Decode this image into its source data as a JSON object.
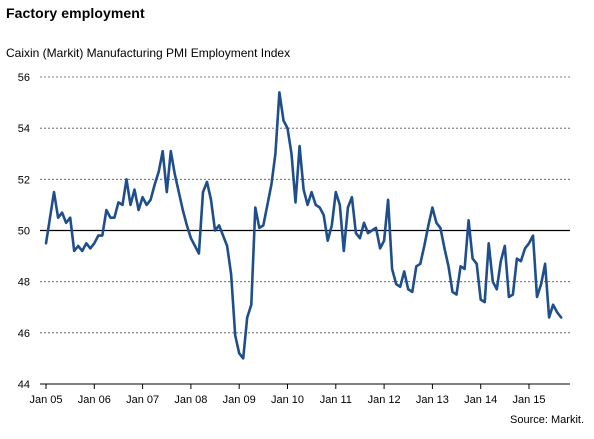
{
  "header": {
    "title": "Factory employment",
    "subtitle": "Caixin (Markit) Manufacturing PMI Employment Index",
    "source": "Source: Markit."
  },
  "chart_data": {
    "type": "line",
    "title": "Factory employment",
    "subtitle": "Caixin (Markit) Manufacturing PMI Employment Index",
    "ylim": [
      44,
      56
    ],
    "yticks": [
      "44",
      "46",
      "48",
      "50",
      "52",
      "54",
      "56"
    ],
    "xticks": [
      "Jan 05",
      "Jan 06",
      "Jan 07",
      "Jan 08",
      "Jan 09",
      "Jan 10",
      "Jan 11",
      "Jan 12",
      "Jan 13",
      "Jan 14",
      "Jan 15"
    ],
    "reference_line": 50,
    "grid": "horizontal dashed",
    "line_color": "#1f4e8c",
    "x_start": "2005-01",
    "x_step": "month",
    "series": [
      {
        "values": [
          49.5,
          50.5,
          51.5,
          50.5,
          50.7,
          50.3,
          50.5,
          49.2,
          49.4,
          49.2,
          49.5,
          49.3,
          49.5,
          49.8,
          49.8,
          50.8,
          50.5,
          50.5,
          51.1,
          51.0,
          52.0,
          51.0,
          51.6,
          50.8,
          51.3,
          51.0,
          51.2,
          51.8,
          52.3,
          53.1,
          51.5,
          53.1,
          52.2,
          51.5,
          50.8,
          50.2,
          49.7,
          49.4,
          49.1,
          51.5,
          51.9,
          51.2,
          50.0,
          50.2,
          49.8,
          49.4,
          48.3,
          45.9,
          45.2,
          45.0,
          46.6,
          47.1,
          50.9,
          50.1,
          50.2,
          51.0,
          51.8,
          53.0,
          55.4,
          54.3,
          54.0,
          53.0,
          51.1,
          53.3,
          51.6,
          51.0,
          51.5,
          51.0,
          50.9,
          50.6,
          49.6,
          50.2,
          51.5,
          51.0,
          49.2,
          50.9,
          51.3,
          49.9,
          49.7,
          50.3,
          49.9,
          50.0,
          50.1,
          49.3,
          49.6,
          51.2,
          48.5,
          47.9,
          47.8,
          48.4,
          47.7,
          47.6,
          48.6,
          48.7,
          49.4,
          50.2,
          50.9,
          50.3,
          50.1,
          49.3,
          48.6,
          47.6,
          47.5,
          48.6,
          48.5,
          50.4,
          48.9,
          48.7,
          47.3,
          47.2,
          49.5,
          48.0,
          47.7,
          48.8,
          49.4,
          47.4,
          47.5,
          48.9,
          48.8,
          49.3,
          49.5,
          49.8,
          47.4,
          47.9,
          48.7,
          46.6,
          47.1,
          46.8,
          46.6
        ]
      }
    ]
  }
}
